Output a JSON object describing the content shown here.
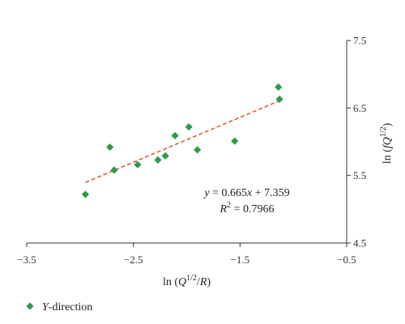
{
  "chart_data": {
    "type": "scatter",
    "xlabel": "ln (Q1/2/R)",
    "ylabel": "ln (fQ1/2)",
    "xlim": [
      -3.5,
      -0.5
    ],
    "ylim": [
      4.5,
      7.5
    ],
    "x_ticks": [
      -3.5,
      -2.5,
      -1.5,
      -0.5
    ],
    "y_ticks": [
      4.5,
      5.5,
      6.5,
      7.5
    ],
    "x_tick_labels": [
      "−3.5",
      "−2.5",
      "−1.5",
      "−0.5"
    ],
    "y_tick_labels": [
      "4.5",
      "5.5",
      "6.5",
      "7.5"
    ],
    "grid": false,
    "legend_position": "bottom-left",
    "series": [
      {
        "name": "Y-direction",
        "color": "#2e9a4a",
        "marker": "diamond",
        "x": [
          -2.95,
          -2.72,
          -2.68,
          -2.46,
          -2.27,
          -2.2,
          -2.11,
          -1.98,
          -1.9,
          -1.55,
          -1.14,
          -1.13
        ],
        "y": [
          5.22,
          5.92,
          5.58,
          5.66,
          5.73,
          5.79,
          6.09,
          6.22,
          5.88,
          6.01,
          6.81,
          6.63
        ]
      }
    ],
    "trendline": {
      "slope": 0.665,
      "intercept": 7.359,
      "x_range": [
        -2.95,
        -1.13
      ],
      "color": "#e0542a",
      "style": "dashed",
      "equation_label": "y = 0.665x + 7.359",
      "r2_label": "R2 = 0.7966"
    }
  }
}
